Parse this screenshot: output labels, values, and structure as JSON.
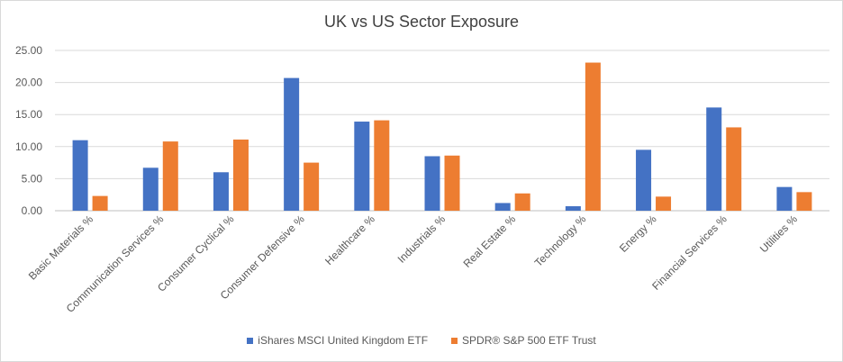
{
  "chart_data": {
    "type": "bar",
    "title": "UK vs US Sector Exposure",
    "xlabel": "",
    "ylabel": "",
    "ylim": [
      0,
      25
    ],
    "yticks": [
      "0.00",
      "5.00",
      "10.00",
      "15.00",
      "20.00",
      "25.00"
    ],
    "grid": true,
    "legend_position": "bottom",
    "categories": [
      "Basic Materials %",
      "Communication Services %",
      "Consumer Cyclical %",
      "Consumer Defensive %",
      "Healthcare %",
      "Industrials %",
      "Real Estate %",
      "Technology %",
      "Energy %",
      "Financial Services %",
      "Utilities %"
    ],
    "series": [
      {
        "name": "iShares MSCI United Kingdom ETF",
        "color": "#4472c4",
        "values": [
          11.0,
          6.7,
          6.0,
          20.7,
          13.9,
          8.5,
          1.2,
          0.7,
          9.5,
          16.1,
          3.7
        ]
      },
      {
        "name": "SPDR® S&P 500 ETF Trust",
        "color": "#ed7d31",
        "values": [
          2.3,
          10.8,
          11.1,
          7.5,
          14.1,
          8.6,
          2.7,
          23.1,
          2.2,
          13.0,
          2.9
        ]
      }
    ]
  }
}
